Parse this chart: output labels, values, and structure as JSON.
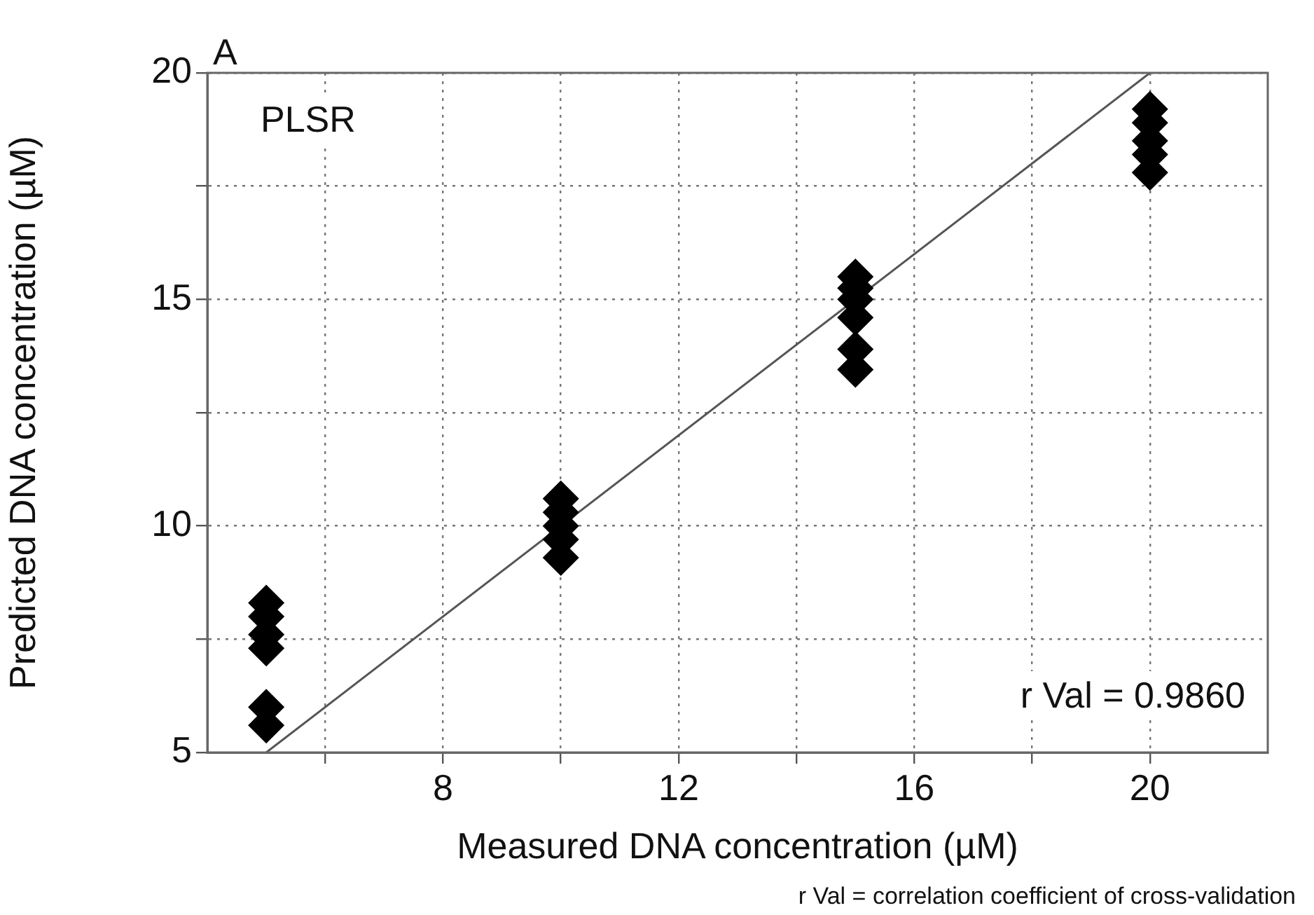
{
  "chart_data": {
    "type": "scatter",
    "xlabel": "Measured DNA concentration (µM)",
    "ylabel": "Predicted DNA concentration (µM)",
    "annotations": [
      "A",
      "PLSR",
      "r Val = 0.9860",
      "r Val = correlation coefficient of cross-validation"
    ],
    "xlim": [
      4,
      22
    ],
    "ylim": [
      5,
      20
    ],
    "xticks": [
      {
        "value": 6,
        "label": null
      },
      8,
      {
        "value": 10,
        "label": null
      },
      12,
      {
        "value": 14,
        "label": null
      },
      16,
      {
        "value": 18,
        "label": null
      },
      20
    ],
    "yticks": [
      5,
      {
        "value": 7.5,
        "label": null
      },
      10,
      {
        "value": 12.5,
        "label": null
      },
      15,
      {
        "value": 17.5,
        "label": null
      },
      20
    ],
    "grid": true,
    "legend": false,
    "marker": "diamond",
    "series": [
      {
        "color": "#000000",
        "x": [
          5,
          5,
          5,
          5,
          5,
          5,
          10,
          10,
          10,
          10,
          10,
          15,
          15,
          15,
          15,
          15,
          15,
          20,
          20,
          20,
          20,
          20
        ],
        "values": [
          8.3,
          8.0,
          7.6,
          7.3,
          6.0,
          5.6,
          10.6,
          10.3,
          10.0,
          9.7,
          9.3,
          15.5,
          15.25,
          15.0,
          14.6,
          13.9,
          13.45,
          19.2,
          18.9,
          18.5,
          18.2,
          17.8
        ]
      },
      {
        "type": "line",
        "color": "#555555",
        "x": [
          5,
          20
        ],
        "values": [
          5,
          20
        ],
        "marker": "none",
        "line_style": "solid"
      }
    ]
  }
}
